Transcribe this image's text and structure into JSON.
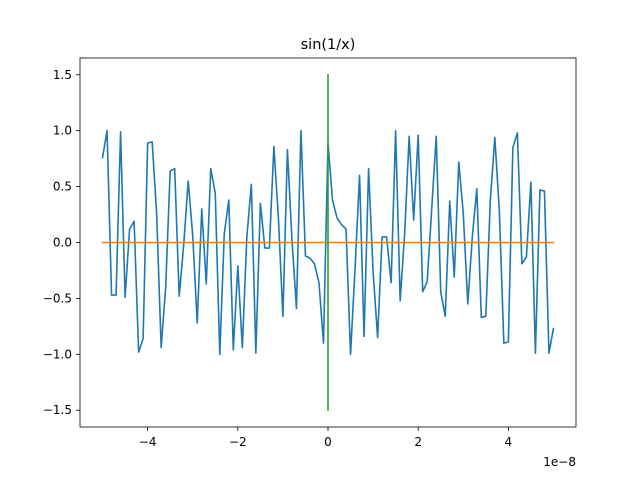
{
  "chart_data": {
    "type": "line",
    "title": "sin(1/x)",
    "xlabel": "",
    "ylabel": "",
    "x_offset_label": "1e−8",
    "x_scale": 1e-08,
    "xlim": [
      -5.5e-08,
      5.5e-08
    ],
    "ylim": [
      -1.65,
      1.65
    ],
    "grid": false,
    "legend": "none",
    "x_ticks": [
      {
        "value": -4e-08,
        "label": "−4"
      },
      {
        "value": -2e-08,
        "label": "−2"
      },
      {
        "value": 0,
        "label": "0"
      },
      {
        "value": 2e-08,
        "label": "2"
      },
      {
        "value": 4e-08,
        "label": "4"
      }
    ],
    "y_ticks": [
      {
        "value": -1.5,
        "label": "−1.5"
      },
      {
        "value": -1.0,
        "label": "−1.0"
      },
      {
        "value": -0.5,
        "label": "−0.5"
      },
      {
        "value": 0.0,
        "label": "0.0"
      },
      {
        "value": 0.5,
        "label": "0.5"
      },
      {
        "value": 1.0,
        "label": "1.0"
      },
      {
        "value": 1.5,
        "label": "1.5"
      }
    ],
    "series": [
      {
        "color": "#1f77b4",
        "x": [
          -5e-08,
          -4.9e-08,
          -4.8e-08,
          -4.7e-08,
          -4.6e-08,
          -4.5e-08,
          -4.4e-08,
          -4.3e-08,
          -4.2e-08,
          -4.1e-08,
          -4e-08,
          -3.9e-08,
          -3.8e-08,
          -3.7e-08,
          -3.6e-08,
          -3.5e-08,
          -3.4e-08,
          -3.3e-08,
          -3.2e-08,
          -3.1e-08,
          -3e-08,
          -2.9e-08,
          -2.8e-08,
          -2.7e-08,
          -2.6e-08,
          -2.5e-08,
          -2.4e-08,
          -2.3e-08,
          -2.2e-08,
          -2.1e-08,
          -2e-08,
          -1.9e-08,
          -1.8e-08,
          -1.7e-08,
          -1.6e-08,
          -1.5e-08,
          -1.4e-08,
          -1.3e-08,
          -1.2e-08,
          -1.1e-08,
          -1e-08,
          -9e-09,
          -8e-09,
          -7e-09,
          -6e-09,
          -5e-09,
          -4e-09,
          -3e-09,
          -2e-09,
          -1e-09,
          0.0,
          1e-09,
          2e-09,
          3e-09,
          4e-09,
          5e-09,
          6e-09,
          7e-09,
          8e-09,
          9e-09,
          1e-08,
          1.1e-08,
          1.2e-08,
          1.3e-08,
          1.4e-08,
          1.5e-08,
          1.6e-08,
          1.7e-08,
          1.8e-08,
          1.9e-08,
          2e-08,
          2.1e-08,
          2.2e-08,
          2.3e-08,
          2.4e-08,
          2.5e-08,
          2.6e-08,
          2.7e-08,
          2.8e-08,
          2.9e-08,
          3e-08,
          3.1e-08,
          3.2e-08,
          3.3e-08,
          3.4e-08,
          3.5e-08,
          3.6e-08,
          3.7e-08,
          3.8e-08,
          3.9e-08,
          4e-08,
          4.1e-08,
          4.2e-08,
          4.3e-08,
          4.4e-08,
          4.5e-08,
          4.6e-08,
          4.7e-08,
          4.8e-08,
          4.9e-08,
          5e-08
        ],
        "y": [
          0.76,
          1.0,
          -0.47,
          -0.47,
          0.99,
          -0.49,
          0.12,
          0.19,
          -0.98,
          -0.86,
          0.89,
          0.9,
          0.26,
          -0.94,
          -0.4,
          0.64,
          0.66,
          -0.48,
          -0.02,
          0.55,
          0.06,
          -0.72,
          0.3,
          -0.37,
          0.66,
          0.44,
          -1.0,
          0.08,
          0.38,
          -0.96,
          -0.21,
          -0.94,
          0.05,
          0.52,
          -0.99,
          0.35,
          -0.05,
          -0.05,
          0.86,
          0.22,
          -0.66,
          0.83,
          0.03,
          -0.59,
          1.0,
          -0.12,
          -0.14,
          -0.19,
          -0.36,
          -0.9,
          0.89,
          0.38,
          0.22,
          0.16,
          0.12,
          -1.0,
          -0.23,
          0.6,
          -0.84,
          0.66,
          -0.26,
          -0.85,
          0.05,
          0.05,
          -0.36,
          1.0,
          -0.52,
          0.08,
          0.95,
          0.2,
          0.96,
          -0.44,
          -0.35,
          0.3,
          0.95,
          -0.44,
          -0.66,
          0.37,
          -0.31,
          0.72,
          0.26,
          -0.55,
          0.05,
          0.48,
          -0.67,
          -0.66,
          0.38,
          0.94,
          0.28,
          -0.9,
          -0.89,
          0.85,
          0.98,
          -0.19,
          -0.13,
          0.54,
          -0.99,
          0.47,
          0.46,
          -0.99,
          -0.77
        ]
      },
      {
        "color": "#ff7f0e",
        "x": [
          -5e-08,
          5e-08
        ],
        "y": [
          0,
          0
        ]
      },
      {
        "color": "#2ca02c",
        "x": [
          0,
          0
        ],
        "y": [
          -1.5,
          1.5
        ]
      }
    ]
  }
}
